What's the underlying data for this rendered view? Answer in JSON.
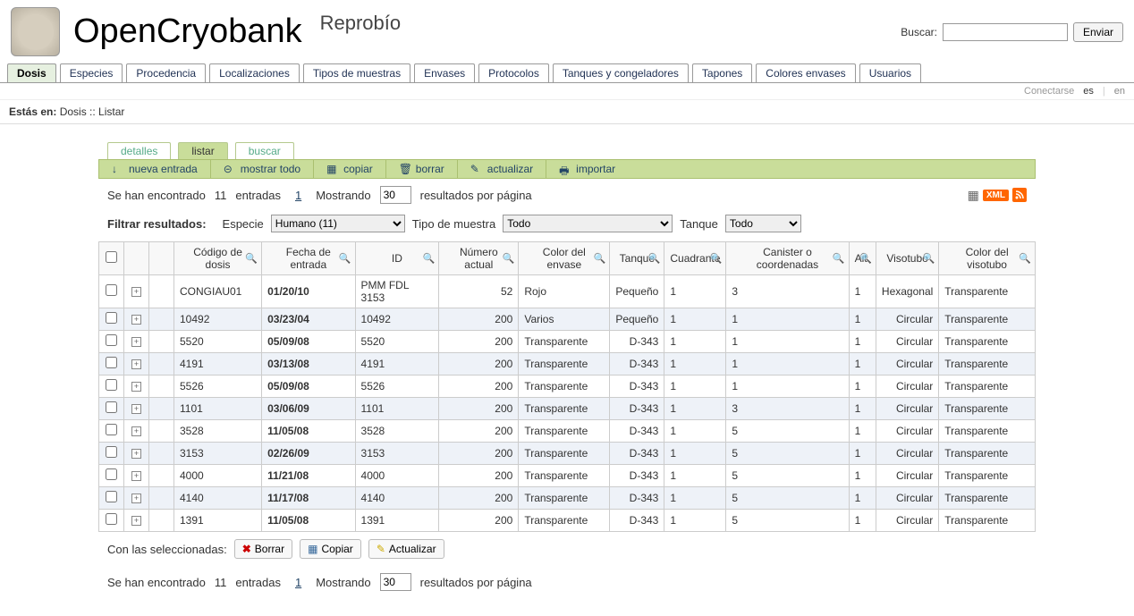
{
  "header": {
    "app_title": "OpenCryobank",
    "subtitle": "Reprobío",
    "search_label": "Buscar:",
    "search_button": "Enviar"
  },
  "main_nav": [
    "Dosis",
    "Especies",
    "Procedencia",
    "Localizaciones",
    "Tipos de muestras",
    "Envases",
    "Protocolos",
    "Tanques y congeladores",
    "Tapones",
    "Colores envases",
    "Usuarios"
  ],
  "main_nav_active": 0,
  "sub_bar": {
    "connect": "Conectarse",
    "lang1": "es",
    "lang2": "en"
  },
  "breadcrumb": {
    "prefix": "Estás en:",
    "path": "Dosis :: Listar"
  },
  "sub_tabs": [
    "detalles",
    "listar",
    "buscar"
  ],
  "sub_tabs_active": 1,
  "actions": [
    {
      "icon": "↓",
      "label": "nueva entrada"
    },
    {
      "icon": "⊝",
      "label": "mostrar todo"
    },
    {
      "icon": "▦",
      "label": "copiar"
    },
    {
      "icon": "🗑",
      "label": "borrar"
    },
    {
      "icon": "✎",
      "label": "actualizar"
    },
    {
      "icon": "🖶",
      "label": "importar"
    }
  ],
  "summary": {
    "found_prefix": "Se han encontrado",
    "count": "11",
    "found_suffix": "entradas",
    "page": "1",
    "showing": "Mostrando",
    "per_page_value": "30",
    "per_page_suffix": "resultados por página",
    "xml": "XML"
  },
  "filters": {
    "label": "Filtrar resultados:",
    "especie_label": "Especie",
    "especie_value": "Humano (11)",
    "tipo_label": "Tipo de muestra",
    "tipo_value": "Todo",
    "tanque_label": "Tanque",
    "tanque_value": "Todo"
  },
  "columns": [
    "",
    "",
    "",
    "Código de dosis",
    "Fecha de entrada",
    "ID",
    "Número actual",
    "Color del envase",
    "Tanque",
    "Cuadrante",
    "Canister o coordenadas",
    "Alt.",
    "Visotubo",
    "Color del visotubo"
  ],
  "rows": [
    {
      "codigo": "CONGIAU01",
      "fecha": "01/20/10",
      "id": "PMM FDL 3153",
      "num": "52",
      "color": "Rojo",
      "tanque": "Pequeño",
      "cuad": "1",
      "can": "3",
      "alt": "1",
      "viso": "Hexagonal",
      "colorv": "Transparente",
      "alt_row": false
    },
    {
      "codigo": "10492",
      "fecha": "03/23/04",
      "id": "10492",
      "num": "200",
      "color": "Varios",
      "tanque": "Pequeño",
      "cuad": "1",
      "can": "1",
      "alt": "1",
      "viso": "Circular",
      "colorv": "Transparente",
      "alt_row": true
    },
    {
      "codigo": "5520",
      "fecha": "05/09/08",
      "id": "5520",
      "num": "200",
      "color": "Transparente",
      "tanque": "D-343",
      "cuad": "1",
      "can": "1",
      "alt": "1",
      "viso": "Circular",
      "colorv": "Transparente",
      "alt_row": false
    },
    {
      "codigo": "4191",
      "fecha": "03/13/08",
      "id": "4191",
      "num": "200",
      "color": "Transparente",
      "tanque": "D-343",
      "cuad": "1",
      "can": "1",
      "alt": "1",
      "viso": "Circular",
      "colorv": "Transparente",
      "alt_row": true
    },
    {
      "codigo": "5526",
      "fecha": "05/09/08",
      "id": "5526",
      "num": "200",
      "color": "Transparente",
      "tanque": "D-343",
      "cuad": "1",
      "can": "1",
      "alt": "1",
      "viso": "Circular",
      "colorv": "Transparente",
      "alt_row": false
    },
    {
      "codigo": "1101",
      "fecha": "03/06/09",
      "id": "1101",
      "num": "200",
      "color": "Transparente",
      "tanque": "D-343",
      "cuad": "1",
      "can": "3",
      "alt": "1",
      "viso": "Circular",
      "colorv": "Transparente",
      "alt_row": true
    },
    {
      "codigo": "3528",
      "fecha": "11/05/08",
      "id": "3528",
      "num": "200",
      "color": "Transparente",
      "tanque": "D-343",
      "cuad": "1",
      "can": "5",
      "alt": "1",
      "viso": "Circular",
      "colorv": "Transparente",
      "alt_row": false
    },
    {
      "codigo": "3153",
      "fecha": "02/26/09",
      "id": "3153",
      "num": "200",
      "color": "Transparente",
      "tanque": "D-343",
      "cuad": "1",
      "can": "5",
      "alt": "1",
      "viso": "Circular",
      "colorv": "Transparente",
      "alt_row": true
    },
    {
      "codigo": "4000",
      "fecha": "11/21/08",
      "id": "4000",
      "num": "200",
      "color": "Transparente",
      "tanque": "D-343",
      "cuad": "1",
      "can": "5",
      "alt": "1",
      "viso": "Circular",
      "colorv": "Transparente",
      "alt_row": false
    },
    {
      "codigo": "4140",
      "fecha": "11/17/08",
      "id": "4140",
      "num": "200",
      "color": "Transparente",
      "tanque": "D-343",
      "cuad": "1",
      "can": "5",
      "alt": "1",
      "viso": "Circular",
      "colorv": "Transparente",
      "alt_row": true
    },
    {
      "codigo": "1391",
      "fecha": "11/05/08",
      "id": "1391",
      "num": "200",
      "color": "Transparente",
      "tanque": "D-343",
      "cuad": "1",
      "can": "5",
      "alt": "1",
      "viso": "Circular",
      "colorv": "Transparente",
      "alt_row": false
    }
  ],
  "bottom": {
    "with_selected": "Con las seleccionadas:",
    "borrar": "Borrar",
    "copiar": "Copiar",
    "actualizar": "Actualizar"
  }
}
